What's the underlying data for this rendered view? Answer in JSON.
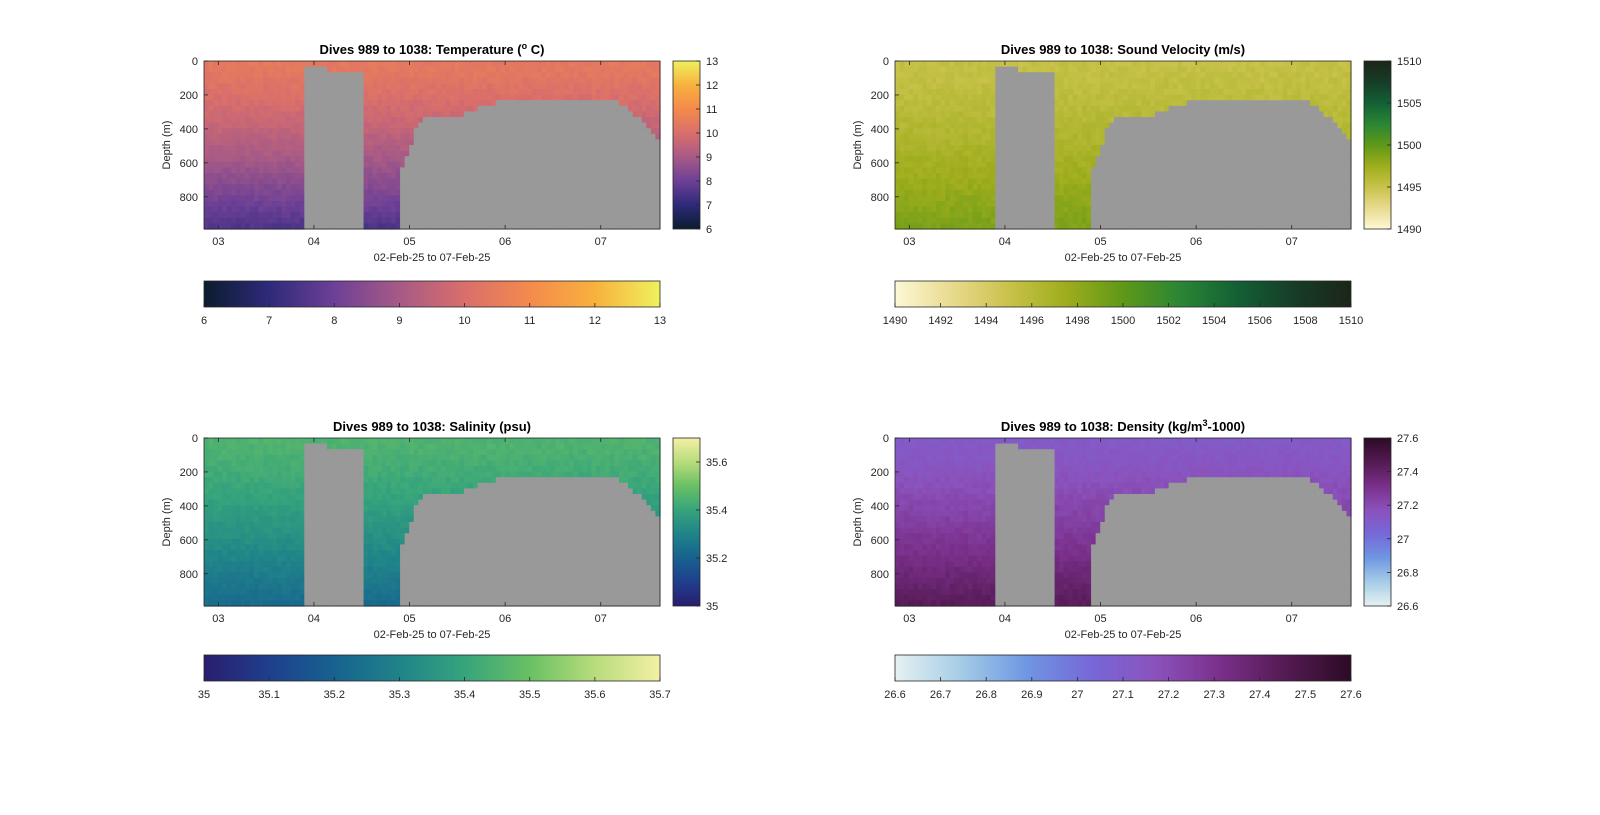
{
  "figure": {
    "background": "#ffffff",
    "mask_color": "#999999"
  },
  "chart_data": [
    {
      "type": "heatmap",
      "variable": "temperature",
      "title_main": "Dives 989 to 1038: Temperature (",
      "title_sup": "o",
      "title_end": " C)",
      "xlabel": "02-Feb-25 to 07-Feb-25",
      "ylabel": "Depth (m)",
      "x_ticks": [
        "03",
        "04",
        "05",
        "06",
        "07"
      ],
      "x_tick_values": [
        3,
        4,
        5,
        6,
        7
      ],
      "xlim": [
        2.85,
        7.62
      ],
      "y_ticks": [
        "0",
        "200",
        "400",
        "600",
        "800"
      ],
      "y_tick_values": [
        0,
        200,
        400,
        600,
        800
      ],
      "ylim": [
        0,
        990
      ],
      "colormap": [
        "#0b1c2e",
        "#2e2a7a",
        "#6d4096",
        "#a75a86",
        "#d96e6c",
        "#f48a4c",
        "#f7b13e",
        "#eff15d"
      ],
      "clim": [
        6,
        13
      ],
      "side_colorbar_ticks": [
        "6",
        "7",
        "8",
        "9",
        "10",
        "11",
        "12",
        "13"
      ],
      "side_colorbar_tick_values": [
        6,
        7,
        8,
        9,
        10,
        11,
        12,
        13
      ],
      "bottom_colorbar_ticks": [
        "6",
        "7",
        "8",
        "9",
        "10",
        "11",
        "12",
        "13"
      ],
      "bottom_colorbar_tick_values": [
        6,
        7,
        8,
        9,
        10,
        11,
        12,
        13
      ],
      "surface_value": 10.4,
      "deep_value": 7.4
    },
    {
      "type": "heatmap",
      "variable": "sound_velocity",
      "title_main": "Dives 989 to 1038: Sound Velocity (m/s)",
      "title_sup": "",
      "title_end": "",
      "xlabel": "02-Feb-25 to 07-Feb-25",
      "ylabel": "Depth (m)",
      "x_ticks": [
        "03",
        "04",
        "05",
        "06",
        "07"
      ],
      "x_tick_values": [
        3,
        4,
        5,
        6,
        7
      ],
      "xlim": [
        2.85,
        7.62
      ],
      "y_ticks": [
        "0",
        "200",
        "400",
        "600",
        "800"
      ],
      "y_tick_values": [
        0,
        200,
        400,
        600,
        800
      ],
      "ylim": [
        0,
        990
      ],
      "colormap": [
        "#fdf8d6",
        "#e8da8e",
        "#c8c24a",
        "#9ead1c",
        "#5f9819",
        "#2a8634",
        "#136035",
        "#163d27",
        "#1c2518"
      ],
      "clim": [
        1490,
        1510
      ],
      "side_colorbar_ticks": [
        "1490",
        "1495",
        "1500",
        "1505",
        "1510"
      ],
      "side_colorbar_tick_values": [
        1490,
        1495,
        1500,
        1505,
        1510
      ],
      "bottom_colorbar_ticks": [
        "1490",
        "1492",
        "1494",
        "1496",
        "1498",
        "1500",
        "1502",
        "1504",
        "1506",
        "1508",
        "1510"
      ],
      "bottom_colorbar_tick_values": [
        1490,
        1492,
        1494,
        1496,
        1498,
        1500,
        1502,
        1504,
        1506,
        1508,
        1510
      ],
      "surface_value": 1495.2,
      "deep_value": 1499.0
    },
    {
      "type": "heatmap",
      "variable": "salinity",
      "title_main": "Dives 989 to 1038: Salinity (psu)",
      "title_sup": "",
      "title_end": "",
      "xlabel": "02-Feb-25 to 07-Feb-25",
      "ylabel": "Depth (m)",
      "x_ticks": [
        "03",
        "04",
        "05",
        "06",
        "07"
      ],
      "x_tick_values": [
        3,
        4,
        5,
        6,
        7
      ],
      "xlim": [
        2.85,
        7.62
      ],
      "y_ticks": [
        "0",
        "200",
        "400",
        "600",
        "800"
      ],
      "y_tick_values": [
        0,
        200,
        400,
        600,
        800
      ],
      "ylim": [
        0,
        990
      ],
      "colormap": [
        "#2a1d6e",
        "#1f3f8c",
        "#17628f",
        "#208389",
        "#36a47c",
        "#69c064",
        "#b8dc7c",
        "#f3f0a4"
      ],
      "clim": [
        35,
        35.7
      ],
      "side_colorbar_ticks": [
        "35",
        "35.2",
        "35.4",
        "35.6"
      ],
      "side_colorbar_tick_values": [
        35,
        35.2,
        35.4,
        35.6
      ],
      "bottom_colorbar_ticks": [
        "35",
        "35.1",
        "35.2",
        "35.3",
        "35.4",
        "35.5",
        "35.6",
        "35.7"
      ],
      "bottom_colorbar_tick_values": [
        35,
        35.1,
        35.2,
        35.3,
        35.4,
        35.5,
        35.6,
        35.7
      ],
      "surface_value": 35.45,
      "deep_value": 35.22
    },
    {
      "type": "heatmap",
      "variable": "density",
      "title_main": "Dives 989 to 1038: Density (kg/m",
      "title_sup": "3",
      "title_end": "-1000)",
      "xlabel": "02-Feb-25 to 07-Feb-25",
      "ylabel": "Depth (m)",
      "x_ticks": [
        "03",
        "04",
        "05",
        "06",
        "07"
      ],
      "x_tick_values": [
        3,
        4,
        5,
        6,
        7
      ],
      "xlim": [
        2.85,
        7.62
      ],
      "y_ticks": [
        "0",
        "200",
        "400",
        "600",
        "800"
      ],
      "y_tick_values": [
        0,
        200,
        400,
        600,
        800
      ],
      "ylim": [
        0,
        990
      ],
      "side_colorbar_ticks": [
        "26.6",
        "26.8",
        "27",
        "27.2",
        "27.4",
        "27.6"
      ],
      "side_colorbar_tick_values": [
        26.6,
        26.8,
        27,
        27.2,
        27.4,
        27.6
      ],
      "colormap": [
        "#e6f1f1",
        "#a6cde6",
        "#6f97e2",
        "#7668d8",
        "#8b52bc",
        "#7a2f8a",
        "#541a52",
        "#2c0b26"
      ],
      "clim": [
        26.6,
        27.6
      ],
      "bottom_colorbar_ticks": [
        "26.6",
        "26.7",
        "26.8",
        "26.9",
        "27",
        "27.1",
        "27.2",
        "27.3",
        "27.4",
        "27.5",
        "27.6"
      ],
      "bottom_colorbar_tick_values": [
        26.6,
        26.7,
        26.8,
        26.9,
        27,
        27.1,
        27.2,
        27.3,
        27.4,
        27.5,
        27.6
      ],
      "surface_value": 27.12,
      "deep_value": 27.45
    }
  ],
  "profiles": {
    "description_note": "",
    "max_depth_by_profile": [
      990,
      990,
      990,
      990,
      990,
      990,
      990,
      990,
      990,
      990,
      990,
      990,
      990,
      990,
      990,
      990,
      990,
      990,
      990,
      990,
      990,
      990,
      30,
      30,
      30,
      30,
      30,
      50,
      50,
      50,
      50,
      50,
      50,
      50,
      50,
      990,
      990,
      990,
      990,
      990,
      990,
      990,
      990,
      620,
      550,
      470,
      390,
      350,
      330,
      310,
      310,
      300,
      300,
      310,
      320,
      330,
      300,
      290,
      280,
      270,
      260,
      250,
      240,
      235,
      230,
      225,
      220,
      215,
      210,
      210,
      205,
      205,
      205,
      200,
      200,
      200,
      205,
      205,
      210,
      210,
      215,
      215,
      220,
      220,
      225,
      215,
      210,
      205,
      210,
      220,
      230,
      245,
      260,
      280,
      300,
      330,
      360,
      390,
      410,
      430
    ]
  }
}
